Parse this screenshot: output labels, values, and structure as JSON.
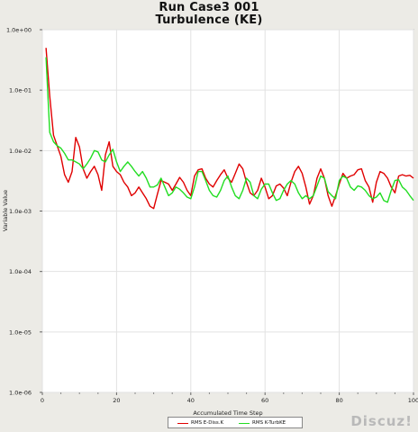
{
  "chart_data": {
    "type": "line",
    "title": "Run Case3 001",
    "subtitle": "Turbulence (KE)",
    "xlabel": "Accumulated Time Step",
    "ylabel": "Variable Value",
    "xlim": [
      0,
      100
    ],
    "ylim": [
      1e-06,
      1
    ],
    "yscale": "log",
    "grid": true,
    "legend_position": "bottom-center",
    "x_ticks": [
      "0",
      "20",
      "40",
      "60",
      "80",
      "100"
    ],
    "y_ticks": [
      "1.0e+00",
      "1.0e-01",
      "1.0e-02",
      "1.0e-03",
      "1.0e-04",
      "1.0e-05",
      "1.0e-06"
    ],
    "x": [
      1,
      2,
      3,
      4,
      5,
      6,
      7,
      8,
      9,
      10,
      11,
      12,
      13,
      14,
      15,
      16,
      17,
      18,
      19,
      20,
      21,
      22,
      23,
      24,
      25,
      26,
      27,
      28,
      29,
      30,
      31,
      32,
      33,
      34,
      35,
      36,
      37,
      38,
      39,
      40,
      41,
      42,
      43,
      44,
      45,
      46,
      47,
      48,
      49,
      50,
      51,
      52,
      53,
      54,
      55,
      56,
      57,
      58,
      59,
      60,
      61,
      62,
      63,
      64,
      65,
      66,
      67,
      68,
      69,
      70,
      71,
      72,
      73,
      74,
      75,
      76,
      77,
      78,
      79,
      80,
      81,
      82,
      83,
      84,
      85,
      86,
      87,
      88,
      89,
      90,
      91,
      92,
      93,
      94,
      95,
      96,
      97,
      98,
      99,
      100
    ],
    "series": [
      {
        "name": "RMS E-Diss.K",
        "color": "#e00000",
        "values": [
          0.5,
          0.08,
          0.018,
          0.012,
          0.008,
          0.004,
          0.003,
          0.0045,
          0.0165,
          0.0115,
          0.005,
          0.0035,
          0.0045,
          0.0055,
          0.004,
          0.0022,
          0.0085,
          0.014,
          0.0055,
          0.0045,
          0.004,
          0.003,
          0.0025,
          0.0018,
          0.002,
          0.0025,
          0.002,
          0.0016,
          0.0012,
          0.0011,
          0.0019,
          0.0032,
          0.003,
          0.0028,
          0.0022,
          0.0028,
          0.0036,
          0.003,
          0.0022,
          0.0018,
          0.0038,
          0.0048,
          0.005,
          0.0035,
          0.0028,
          0.0025,
          0.0032,
          0.004,
          0.0048,
          0.0035,
          0.003,
          0.0042,
          0.006,
          0.005,
          0.003,
          0.002,
          0.0018,
          0.0022,
          0.0035,
          0.0025,
          0.0016,
          0.0018,
          0.0026,
          0.0028,
          0.0024,
          0.0018,
          0.003,
          0.0045,
          0.0055,
          0.0042,
          0.0025,
          0.0013,
          0.0018,
          0.0035,
          0.005,
          0.0035,
          0.0018,
          0.0012,
          0.0018,
          0.0028,
          0.0042,
          0.0035,
          0.0038,
          0.004,
          0.0048,
          0.005,
          0.0032,
          0.0025,
          0.0014,
          0.003,
          0.0045,
          0.0042,
          0.0035,
          0.0025,
          0.002,
          0.0038,
          0.004,
          0.0038,
          0.0039,
          0.0035
        ]
      },
      {
        "name": "RMS K-TurbKE",
        "color": "#22dd22",
        "values": [
          0.35,
          0.02,
          0.014,
          0.012,
          0.011,
          0.009,
          0.007,
          0.007,
          0.0065,
          0.006,
          0.005,
          0.006,
          0.0075,
          0.01,
          0.0095,
          0.007,
          0.0065,
          0.0085,
          0.0105,
          0.0065,
          0.0045,
          0.0055,
          0.0065,
          0.0055,
          0.0045,
          0.0038,
          0.0045,
          0.0035,
          0.0025,
          0.0025,
          0.0027,
          0.0035,
          0.0025,
          0.0018,
          0.002,
          0.0025,
          0.0023,
          0.002,
          0.0017,
          0.0016,
          0.0025,
          0.0045,
          0.0045,
          0.0032,
          0.0022,
          0.0018,
          0.0017,
          0.0022,
          0.0032,
          0.0038,
          0.0025,
          0.0018,
          0.0016,
          0.0022,
          0.0035,
          0.003,
          0.0018,
          0.0016,
          0.0023,
          0.0028,
          0.0028,
          0.002,
          0.0015,
          0.0016,
          0.0022,
          0.0028,
          0.0032,
          0.0028,
          0.002,
          0.0016,
          0.0018,
          0.0016,
          0.0018,
          0.0026,
          0.0038,
          0.0035,
          0.0021,
          0.0018,
          0.0016,
          0.0032,
          0.0038,
          0.0035,
          0.0025,
          0.0022,
          0.0026,
          0.0025,
          0.0022,
          0.0018,
          0.0016,
          0.0017,
          0.002,
          0.0015,
          0.0014,
          0.0022,
          0.0032,
          0.0033,
          0.0025,
          0.0022,
          0.0018,
          0.0015
        ]
      }
    ]
  },
  "watermark": "Discuz!"
}
